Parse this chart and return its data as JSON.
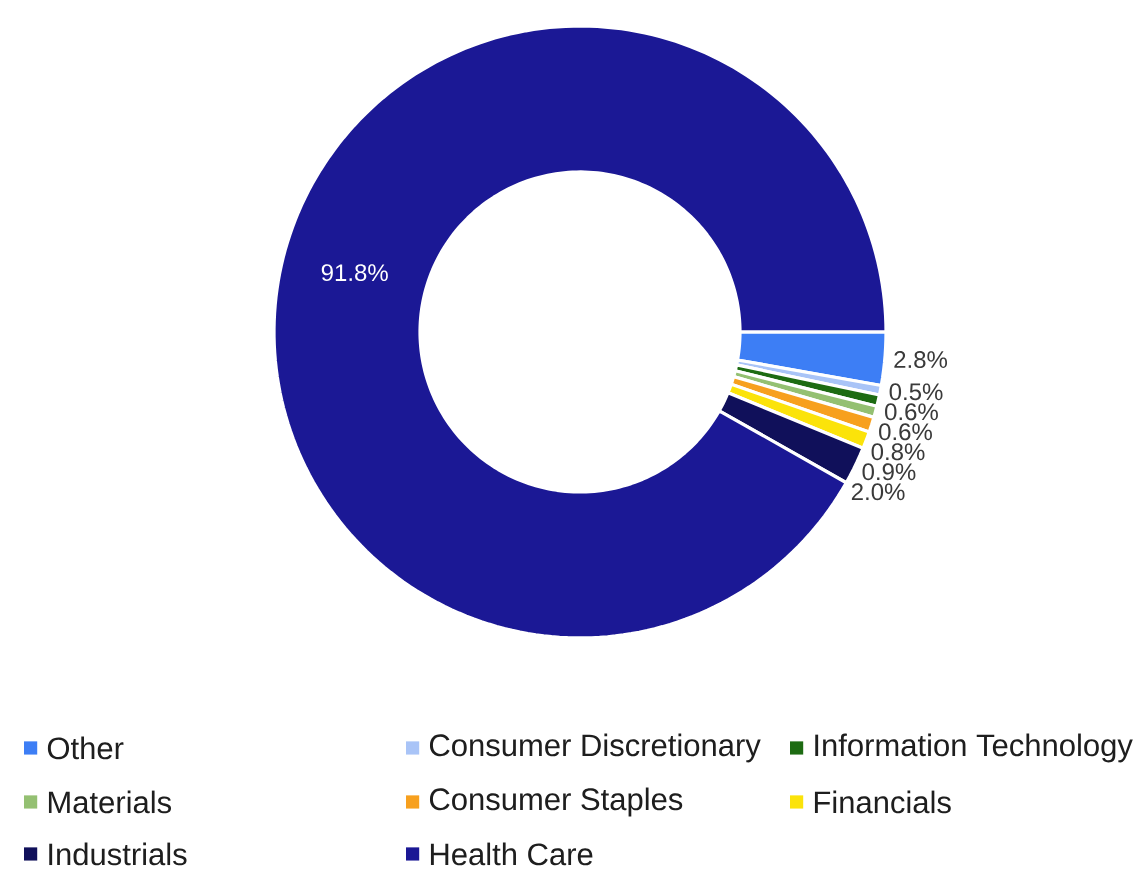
{
  "chart_data": {
    "type": "donut",
    "categories": [
      "Other",
      "Consumer Discretionary",
      "Information Technology",
      "Materials",
      "Consumer Staples",
      "Financials",
      "Industrials",
      "Health Care"
    ],
    "values": [
      2.8,
      0.5,
      0.6,
      0.6,
      0.8,
      0.9,
      2.0,
      91.8
    ],
    "colors": [
      "#3d7ef5",
      "#a9c4f7",
      "#1d6b12",
      "#94c072",
      "#f7a01e",
      "#fbe30a",
      "#10105a",
      "#1b1895"
    ],
    "value_labels": [
      "2.8%",
      "0.5%",
      "0.6%",
      "0.6%",
      "0.8%",
      "0.9%",
      "2.0%",
      "91.8%"
    ],
    "legend": "bottom"
  }
}
